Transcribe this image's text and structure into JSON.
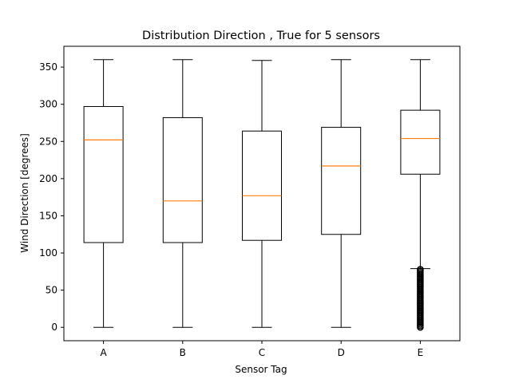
{
  "chart_data": {
    "type": "box",
    "title": "Distribution Direction , True for 5 sensors",
    "xlabel": "Sensor Tag",
    "ylabel": "Wind Direction [degrees]",
    "categories": [
      "A",
      "B",
      "C",
      "D",
      "E"
    ],
    "ylim": [
      -18,
      378
    ],
    "yticks": [
      0,
      50,
      100,
      150,
      200,
      250,
      300,
      350
    ],
    "grid": false,
    "boxes": [
      {
        "category": "A",
        "whisker_low": 0,
        "q1": 114,
        "median": 252,
        "q3": 297,
        "whisker_high": 360,
        "outliers": []
      },
      {
        "category": "B",
        "whisker_low": 0,
        "q1": 114,
        "median": 170,
        "q3": 282,
        "whisker_high": 360,
        "outliers": []
      },
      {
        "category": "C",
        "whisker_low": 0,
        "q1": 117,
        "median": 177,
        "q3": 264,
        "whisker_high": 359,
        "outliers": []
      },
      {
        "category": "D",
        "whisker_low": 0,
        "q1": 125,
        "median": 217,
        "q3": 269,
        "whisker_high": 360,
        "outliers": []
      },
      {
        "category": "E",
        "whisker_low": 79,
        "q1": 206,
        "median": 254,
        "q3": 292,
        "whisker_high": 360,
        "outliers": [
          0,
          2,
          4,
          6,
          8,
          10,
          12,
          14,
          16,
          18,
          20,
          22,
          24,
          26,
          28,
          30,
          32,
          34,
          36,
          38,
          40,
          42,
          44,
          46,
          48,
          50,
          52,
          54,
          56,
          58,
          60,
          62,
          64,
          66,
          68,
          70,
          72,
          74,
          76,
          78
        ]
      }
    ],
    "colors": {
      "box": "#000000",
      "median": "#ff7f0e",
      "outlier": "#000000"
    }
  }
}
